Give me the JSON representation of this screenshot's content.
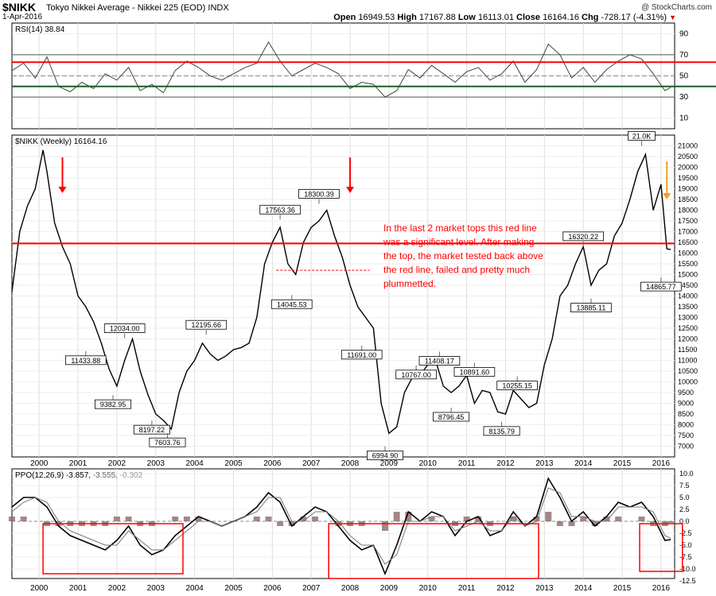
{
  "header": {
    "ticker": "$NIKK",
    "description": "Tokyo Nikkei Average - Nikkei 225 (EOD)",
    "exchange": "INDX",
    "date": "1-Apr-2016",
    "brand": "@ StockCharts.com",
    "open_label": "Open",
    "open": "16949.53",
    "high_label": "High",
    "high": "17167.88",
    "low_label": "Low",
    "low": "16113.01",
    "close_label": "Close",
    "close": "16164.16",
    "chg_label": "Chg",
    "chg": "-728.17 (-4.31%)"
  },
  "colors": {
    "red": "#ff0000",
    "green": "#1f5c1f",
    "price": "#000000",
    "ppo_hist": "#8a6a6a",
    "orange": "#f0a020",
    "rsi_fill": "#a8a890"
  },
  "chart_data": [
    {
      "type": "line",
      "title": "RSI(14) 38.84",
      "ylim": [
        0,
        100
      ],
      "yticks": [
        "90",
        "70",
        "50",
        "30",
        "10"
      ],
      "levels": [
        70,
        50,
        30
      ],
      "series": [
        {
          "name": "RSI(14) 38.84",
          "x": [
            1999.3,
            1999.6,
            1999.9,
            2000.2,
            2000.5,
            2000.8,
            2001.1,
            2001.4,
            2001.7,
            2002.0,
            2002.3,
            2002.6,
            2002.9,
            2003.2,
            2003.5,
            2003.8,
            2004.1,
            2004.4,
            2004.7,
            2005.0,
            2005.3,
            2005.6,
            2005.9,
            2006.2,
            2006.5,
            2006.8,
            2007.1,
            2007.4,
            2007.7,
            2008.0,
            2008.3,
            2008.6,
            2008.9,
            2009.2,
            2009.5,
            2009.8,
            2010.1,
            2010.4,
            2010.7,
            2011.0,
            2011.3,
            2011.6,
            2011.9,
            2012.2,
            2012.5,
            2012.8,
            2013.1,
            2013.4,
            2013.7,
            2014.0,
            2014.3,
            2014.6,
            2014.9,
            2015.2,
            2015.5,
            2015.8,
            2016.1,
            2016.25
          ],
          "values": [
            55,
            62,
            48,
            68,
            40,
            35,
            44,
            38,
            52,
            46,
            58,
            36,
            42,
            34,
            55,
            64,
            58,
            50,
            46,
            52,
            58,
            62,
            82,
            64,
            50,
            56,
            62,
            58,
            52,
            38,
            44,
            42,
            30,
            36,
            56,
            48,
            60,
            52,
            44,
            54,
            58,
            46,
            52,
            64,
            44,
            56,
            80,
            70,
            48,
            58,
            44,
            56,
            64,
            70,
            66,
            52,
            36,
            39
          ]
        }
      ],
      "annotations": [
        {
          "type": "hline",
          "label": "red resistance line",
          "value": 63
        },
        {
          "type": "hline",
          "label": "green support line",
          "value": 40
        }
      ]
    },
    {
      "type": "line",
      "title": "$NIKK (Weekly) 16164.16",
      "ylim": [
        6500,
        21500
      ],
      "yticks": [
        "21000",
        "20500",
        "20000",
        "19500",
        "19000",
        "18500",
        "18000",
        "17500",
        "17000",
        "16500",
        "16000",
        "15500",
        "15000",
        "14500",
        "14000",
        "13500",
        "13000",
        "12500",
        "12000",
        "11500",
        "11000",
        "10500",
        "10000",
        "9500",
        "9000",
        "8500",
        "8000",
        "7500",
        "7000"
      ],
      "series": [
        {
          "name": "$NIKK (Weekly)",
          "x": [
            1999.3,
            1999.5,
            1999.7,
            1999.9,
            2000.1,
            2000.2,
            2000.4,
            2000.6,
            2000.8,
            2001.0,
            2001.2,
            2001.4,
            2001.6,
            2001.8,
            2002.0,
            2002.2,
            2002.4,
            2002.6,
            2002.8,
            2003.0,
            2003.2,
            2003.4,
            2003.6,
            2003.8,
            2004.0,
            2004.2,
            2004.4,
            2004.6,
            2004.8,
            2005.0,
            2005.2,
            2005.4,
            2005.6,
            2005.8,
            2006.0,
            2006.2,
            2006.4,
            2006.6,
            2006.8,
            2007.0,
            2007.2,
            2007.4,
            2007.6,
            2007.8,
            2008.0,
            2008.2,
            2008.4,
            2008.6,
            2008.8,
            2009.0,
            2009.2,
            2009.4,
            2009.6,
            2009.8,
            2010.0,
            2010.2,
            2010.4,
            2010.6,
            2010.8,
            2011.0,
            2011.2,
            2011.4,
            2011.6,
            2011.8,
            2012.0,
            2012.2,
            2012.4,
            2012.6,
            2012.8,
            2013.0,
            2013.2,
            2013.4,
            2013.6,
            2013.8,
            2014.0,
            2014.2,
            2014.4,
            2014.6,
            2014.8,
            2015.0,
            2015.2,
            2015.4,
            2015.6,
            2015.8,
            2016.0,
            2016.15,
            2016.25
          ],
          "values": [
            14200,
            17000,
            18200,
            19000,
            20800,
            19800,
            17400,
            16300,
            15500,
            14000,
            13500,
            12800,
            11800,
            10600,
            9800,
            11000,
            12000,
            10500,
            9400,
            8500,
            8200,
            7800,
            9500,
            10500,
            11000,
            11800,
            11300,
            11000,
            11200,
            11500,
            11600,
            11800,
            13000,
            15500,
            16500,
            17200,
            15500,
            15000,
            16500,
            17200,
            17500,
            18000,
            16800,
            15800,
            14500,
            13500,
            13000,
            12500,
            9000,
            7600,
            7900,
            9500,
            10200,
            10300,
            10800,
            11000,
            9800,
            9500,
            9800,
            10300,
            9000,
            9600,
            9500,
            8600,
            8500,
            9600,
            9200,
            8800,
            9000,
            10800,
            12000,
            14000,
            14500,
            15500,
            16300,
            14500,
            15200,
            15500,
            16800,
            17400,
            18500,
            19800,
            20600,
            18000,
            19200,
            16200,
            16164
          ]
        }
      ],
      "annotations": [
        {
          "type": "hline",
          "label": "red line",
          "value": 16450
        },
        {
          "type": "hline",
          "label": "dashed red",
          "value": 15200
        },
        {
          "type": "text",
          "text": "In the last 2 market tops this red line was a significant level. After making the top, the market tested back above the red line, failed and pretty much plummetted."
        }
      ],
      "price_labels": [
        {
          "x": 2000.3,
          "y": 20800,
          "text": ""
        },
        {
          "x": 2001.2,
          "y": 11433.88,
          "text": "11433.88"
        },
        {
          "x": 2001.9,
          "y": 9382.95,
          "text": "9382.95"
        },
        {
          "x": 2002.2,
          "y": 12034.0,
          "text": "12034.00"
        },
        {
          "x": 2002.9,
          "y": 8197.22,
          "text": "8197.22"
        },
        {
          "x": 2003.3,
          "y": 7603.76,
          "text": "7603.76"
        },
        {
          "x": 2004.3,
          "y": 12195.66,
          "text": "12195.66"
        },
        {
          "x": 2006.2,
          "y": 17563.36,
          "text": "17563.36"
        },
        {
          "x": 2006.5,
          "y": 14045.53,
          "text": "14045.53"
        },
        {
          "x": 2007.2,
          "y": 18300.39,
          "text": "18300.39"
        },
        {
          "x": 2008.3,
          "y": 11691.0,
          "text": "11691.00"
        },
        {
          "x": 2008.9,
          "y": 6994.9,
          "text": "6994.90"
        },
        {
          "x": 2009.7,
          "y": 10767.0,
          "text": "10767.00"
        },
        {
          "x": 2010.3,
          "y": 11408.17,
          "text": "11408.17"
        },
        {
          "x": 2010.6,
          "y": 8796.45,
          "text": "8796.45"
        },
        {
          "x": 2011.2,
          "y": 10891.6,
          "text": "10891.60"
        },
        {
          "x": 2011.9,
          "y": 8135.79,
          "text": "8135.79"
        },
        {
          "x": 2012.3,
          "y": 10255.15,
          "text": "10255.15"
        },
        {
          "x": 2014.0,
          "y": 16320.22,
          "text": "16320.22"
        },
        {
          "x": 2014.2,
          "y": 13885.11,
          "text": "13885.11"
        },
        {
          "x": 2015.5,
          "y": 21000,
          "text": "21.0K"
        },
        {
          "x": 2016.0,
          "y": 14865.77,
          "text": "14865.77"
        }
      ]
    },
    {
      "type": "line",
      "title": "PPO(12,26,9) -3.857, -3.555, -0.302",
      "title_parts": {
        "name": "PPO(12,26,9)",
        "v1": "-3.857,",
        "v2": "-3.555,",
        "v3": "-0.302"
      },
      "ylim": [
        -12,
        11
      ],
      "yticks": [
        "10.0",
        "7.5",
        "5.0",
        "2.5",
        "0.0",
        "-2.5",
        "-5.0",
        "-7.5",
        "-10.0",
        "-12.5"
      ],
      "xticks": [
        "2000",
        "2001",
        "2002",
        "2003",
        "2004",
        "2005",
        "2006",
        "2007",
        "2008",
        "2009",
        "2010",
        "2011",
        "2012",
        "2013",
        "2014",
        "2015",
        "2016"
      ],
      "xtick_values": [
        2000,
        2001,
        2002,
        2003,
        2004,
        2005,
        2006,
        2007,
        2008,
        2009,
        2010,
        2011,
        2012,
        2013,
        2014,
        2015,
        2016
      ],
      "series": [
        {
          "name": "PPO",
          "x": [
            1999.3,
            1999.6,
            1999.9,
            2000.2,
            2000.5,
            2000.8,
            2001.1,
            2001.4,
            2001.7,
            2002.0,
            2002.3,
            2002.6,
            2002.9,
            2003.2,
            2003.5,
            2003.8,
            2004.1,
            2004.4,
            2004.7,
            2005.0,
            2005.3,
            2005.6,
            2005.9,
            2006.2,
            2006.5,
            2006.8,
            2007.1,
            2007.4,
            2007.7,
            2008.0,
            2008.3,
            2008.6,
            2008.9,
            2009.2,
            2009.5,
            2009.8,
            2010.1,
            2010.4,
            2010.7,
            2011.0,
            2011.3,
            2011.6,
            2011.9,
            2012.2,
            2012.5,
            2012.8,
            2013.1,
            2013.4,
            2013.7,
            2014.0,
            2014.3,
            2014.6,
            2014.9,
            2015.2,
            2015.5,
            2015.8,
            2016.1,
            2016.25
          ],
          "values": [
            3,
            5,
            5,
            3,
            -1,
            -3,
            -4,
            -5,
            -6,
            -4,
            -1,
            -5,
            -7,
            -6,
            -3,
            -1,
            1,
            0,
            -1,
            0,
            1,
            3,
            6,
            4,
            -1,
            1,
            3,
            2,
            -1,
            -4,
            -6,
            -5,
            -11,
            -5,
            2,
            0,
            2,
            1,
            -3,
            0,
            1,
            -3,
            -2,
            2,
            -1,
            1,
            9,
            5,
            0,
            2,
            -1,
            1,
            4,
            3,
            4,
            1,
            -4,
            -3.857
          ]
        },
        {
          "name": "Signal",
          "x": [
            1999.3,
            1999.6,
            1999.9,
            2000.2,
            2000.5,
            2000.8,
            2001.1,
            2001.4,
            2001.7,
            2002.0,
            2002.3,
            2002.6,
            2002.9,
            2003.2,
            2003.5,
            2003.8,
            2004.1,
            2004.4,
            2004.7,
            2005.0,
            2005.3,
            2005.6,
            2005.9,
            2006.2,
            2006.5,
            2006.8,
            2007.1,
            2007.4,
            2007.7,
            2008.0,
            2008.3,
            2008.6,
            2008.9,
            2009.2,
            2009.5,
            2009.8,
            2010.1,
            2010.4,
            2010.7,
            2011.0,
            2011.3,
            2011.6,
            2011.9,
            2012.2,
            2012.5,
            2012.8,
            2013.1,
            2013.4,
            2013.7,
            2014.0,
            2014.3,
            2014.6,
            2014.9,
            2015.2,
            2015.5,
            2015.8,
            2016.1,
            2016.25
          ],
          "values": [
            2,
            4,
            5,
            4,
            0,
            -2,
            -3,
            -4,
            -5,
            -5,
            -2,
            -4,
            -6,
            -6,
            -4,
            -2,
            0,
            0,
            -1,
            0,
            1,
            2,
            5,
            5,
            0,
            0,
            2,
            2,
            0,
            -3,
            -5,
            -5,
            -9,
            -7,
            0,
            0,
            1,
            1,
            -2,
            -1,
            0,
            -2,
            -2,
            1,
            -1,
            0,
            7,
            6,
            1,
            1,
            0,
            0,
            3,
            3,
            3,
            2,
            -3,
            -3.555
          ]
        }
      ],
      "annotations": [
        {
          "type": "box",
          "x0": 2000.1,
          "x1": 2003.7,
          "y0": -11,
          "y1": -0.5
        },
        {
          "type": "box",
          "x0": 2007.45,
          "x1": 2012.85,
          "y0": -13.5,
          "y1": -0.5
        },
        {
          "type": "box",
          "x0": 2015.45,
          "x1": 2016.55,
          "y0": -10.5,
          "y1": -0.5
        }
      ]
    }
  ]
}
